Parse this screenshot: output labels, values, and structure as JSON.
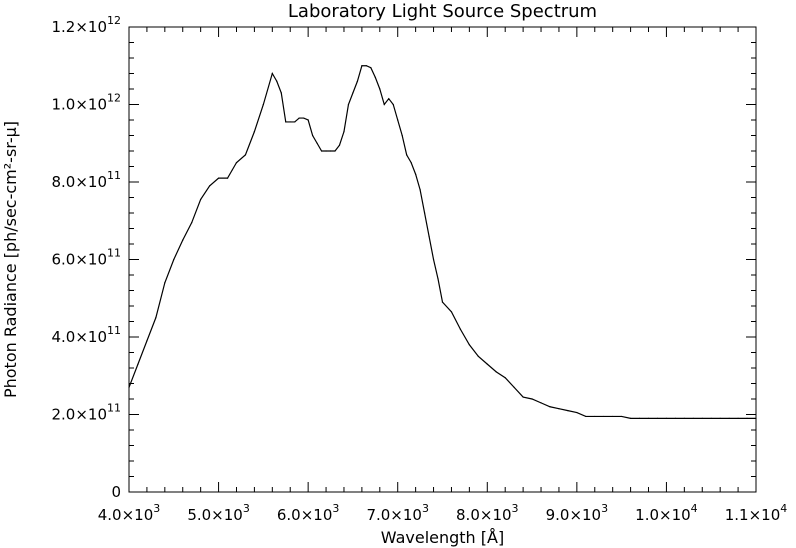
{
  "chart_data": {
    "type": "line",
    "title": "Laboratory Light Source Spectrum",
    "xlabel": "Wavelength [Å]",
    "ylabel": "Photon Radiance [ph/sec-cm²-sr-μ]",
    "xlim": [
      4000,
      11000
    ],
    "ylim": [
      0,
      1200000000000.0
    ],
    "grid": false,
    "x_ticks": [
      {
        "value": 4000,
        "mant": "4.0×10",
        "exp": "3"
      },
      {
        "value": 5000,
        "mant": "5.0×10",
        "exp": "3"
      },
      {
        "value": 6000,
        "mant": "6.0×10",
        "exp": "3"
      },
      {
        "value": 7000,
        "mant": "7.0×10",
        "exp": "3"
      },
      {
        "value": 8000,
        "mant": "8.0×10",
        "exp": "3"
      },
      {
        "value": 9000,
        "mant": "9.0×10",
        "exp": "3"
      },
      {
        "value": 10000,
        "mant": "1.0×10",
        "exp": "4"
      },
      {
        "value": 11000,
        "mant": "1.1×10",
        "exp": "4"
      }
    ],
    "y_ticks": [
      {
        "value": 0,
        "mant": "0",
        "exp": ""
      },
      {
        "value": 200000000000.0,
        "mant": "2.0×10",
        "exp": "11"
      },
      {
        "value": 400000000000.0,
        "mant": "4.0×10",
        "exp": "11"
      },
      {
        "value": 600000000000.0,
        "mant": "6.0×10",
        "exp": "11"
      },
      {
        "value": 800000000000.0,
        "mant": "8.0×10",
        "exp": "11"
      },
      {
        "value": 1000000000000.0,
        "mant": "1.0×10",
        "exp": "12"
      },
      {
        "value": 1200000000000.0,
        "mant": "1.2×10",
        "exp": "12"
      }
    ],
    "series": [
      {
        "x": [
          4000,
          4100,
          4200,
          4300,
          4400,
          4500,
          4600,
          4700,
          4800,
          4900,
          5000,
          5100,
          5150,
          5200,
          5300,
          5400,
          5500,
          5600,
          5650,
          5700,
          5750,
          5800,
          5850,
          5900,
          5950,
          6000,
          6050,
          6100,
          6150,
          6200,
          6250,
          6300,
          6350,
          6400,
          6450,
          6500,
          6550,
          6600,
          6650,
          6700,
          6750,
          6800,
          6850,
          6900,
          6950,
          7000,
          7050,
          7100,
          7150,
          7200,
          7250,
          7300,
          7350,
          7400,
          7450,
          7500,
          7600,
          7700,
          7800,
          7900,
          8000,
          8100,
          8200,
          8300,
          8400,
          8500,
          8600,
          8700,
          8800,
          8900,
          9000,
          9100,
          9200,
          9300,
          9400,
          9500,
          9600,
          9700,
          9800,
          9900,
          10000,
          10100,
          10200,
          10300,
          10400,
          10500,
          10600,
          10700,
          10800,
          10900,
          11000
        ],
        "y": [
          270000000000.0,
          330000000000.0,
          390000000000.0,
          450000000000.0,
          540000000000.0,
          600000000000.0,
          650000000000.0,
          695000000000.0,
          755000000000.0,
          790000000000.0,
          810000000000.0,
          810000000000.0,
          830000000000.0,
          850000000000.0,
          870000000000.0,
          930000000000.0,
          1000000000000.0,
          1080000000000.0,
          1060000000000.0,
          1030000000000.0,
          955000000000.0,
          955000000000.0,
          955000000000.0,
          965000000000.0,
          965000000000.0,
          960000000000.0,
          920000000000.0,
          900000000000.0,
          880000000000.0,
          880000000000.0,
          880000000000.0,
          880000000000.0,
          895000000000.0,
          930000000000.0,
          1000000000000.0,
          1030000000000.0,
          1060000000000.0,
          1100000000000.0,
          1100000000000.0,
          1095000000000.0,
          1070000000000.0,
          1040000000000.0,
          1000000000000.0,
          1015000000000.0,
          1000000000000.0,
          960000000000.0,
          920000000000.0,
          870000000000.0,
          850000000000.0,
          820000000000.0,
          780000000000.0,
          720000000000.0,
          660000000000.0,
          600000000000.0,
          550000000000.0,
          490000000000.0,
          465000000000.0,
          420000000000.0,
          380000000000.0,
          350000000000.0,
          330000000000.0,
          310000000000.0,
          295000000000.0,
          270000000000.0,
          245000000000.0,
          240000000000.0,
          230000000000.0,
          220000000000.0,
          215000000000.0,
          210000000000.0,
          205000000000.0,
          195000000000.0,
          195000000000.0,
          195000000000.0,
          195000000000.0,
          195000000000.0,
          190000000000.0,
          190000000000.0,
          190000000000.0,
          190000000000.0,
          190000000000.0,
          190000000000.0,
          190000000000.0,
          190000000000.0,
          190000000000.0,
          190000000000.0,
          190000000000.0,
          190000000000.0,
          190000000000.0,
          190000000000.0,
          190000000000.0
        ]
      }
    ]
  }
}
